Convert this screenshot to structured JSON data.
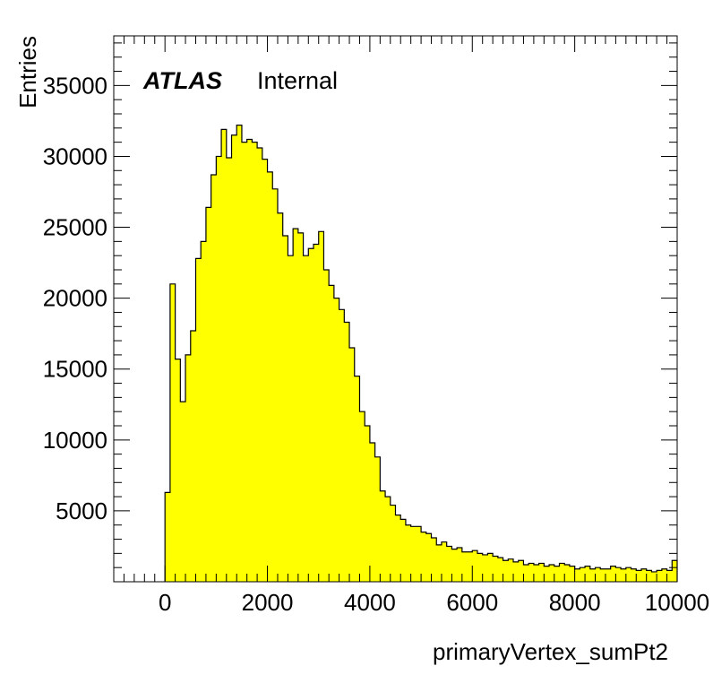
{
  "chart_data": {
    "type": "histogram",
    "xlabel": "primaryVertex_sumPt2",
    "ylabel": "Entries",
    "annotation": {
      "bold": "ATLAS",
      "normal": "Internal"
    },
    "xlim": [
      -1000,
      10000
    ],
    "ylim": [
      0,
      38500
    ],
    "x_ticks": [
      0,
      2000,
      4000,
      6000,
      8000,
      10000
    ],
    "y_ticks": [
      5000,
      10000,
      15000,
      20000,
      25000,
      30000,
      35000
    ],
    "bin_start": 0,
    "bin_width": 100,
    "fill_color": "#ffff00",
    "line_color": "#000000",
    "values": [
      6300,
      21000,
      15700,
      12700,
      16000,
      17700,
      22800,
      24000,
      26400,
      28700,
      30000,
      31900,
      29900,
      31500,
      32200,
      31000,
      31200,
      31000,
      30600,
      29800,
      28900,
      27700,
      26000,
      24400,
      23000,
      24900,
      24600,
      23000,
      23500,
      23800,
      24700,
      22000,
      20900,
      20000,
      19200,
      18300,
      16500,
      14500,
      12000,
      11000,
      9800,
      8800,
      6400,
      6000,
      5400,
      4700,
      4400,
      4000,
      3900,
      3900,
      3500,
      3400,
      3100,
      2600,
      2800,
      2500,
      2300,
      2400,
      2100,
      2100,
      2200,
      2000,
      1900,
      2000,
      1800,
      1700,
      1500,
      1600,
      1400,
      1500,
      1200,
      1300,
      1200,
      1300,
      1100,
      1200,
      1100,
      1300,
      1200,
      1100,
      900,
      1000,
      1100,
      900,
      1000,
      900,
      900,
      1100,
      1000,
      900,
      1000,
      900,
      800,
      900,
      800,
      700,
      800,
      900,
      800,
      1500
    ]
  }
}
